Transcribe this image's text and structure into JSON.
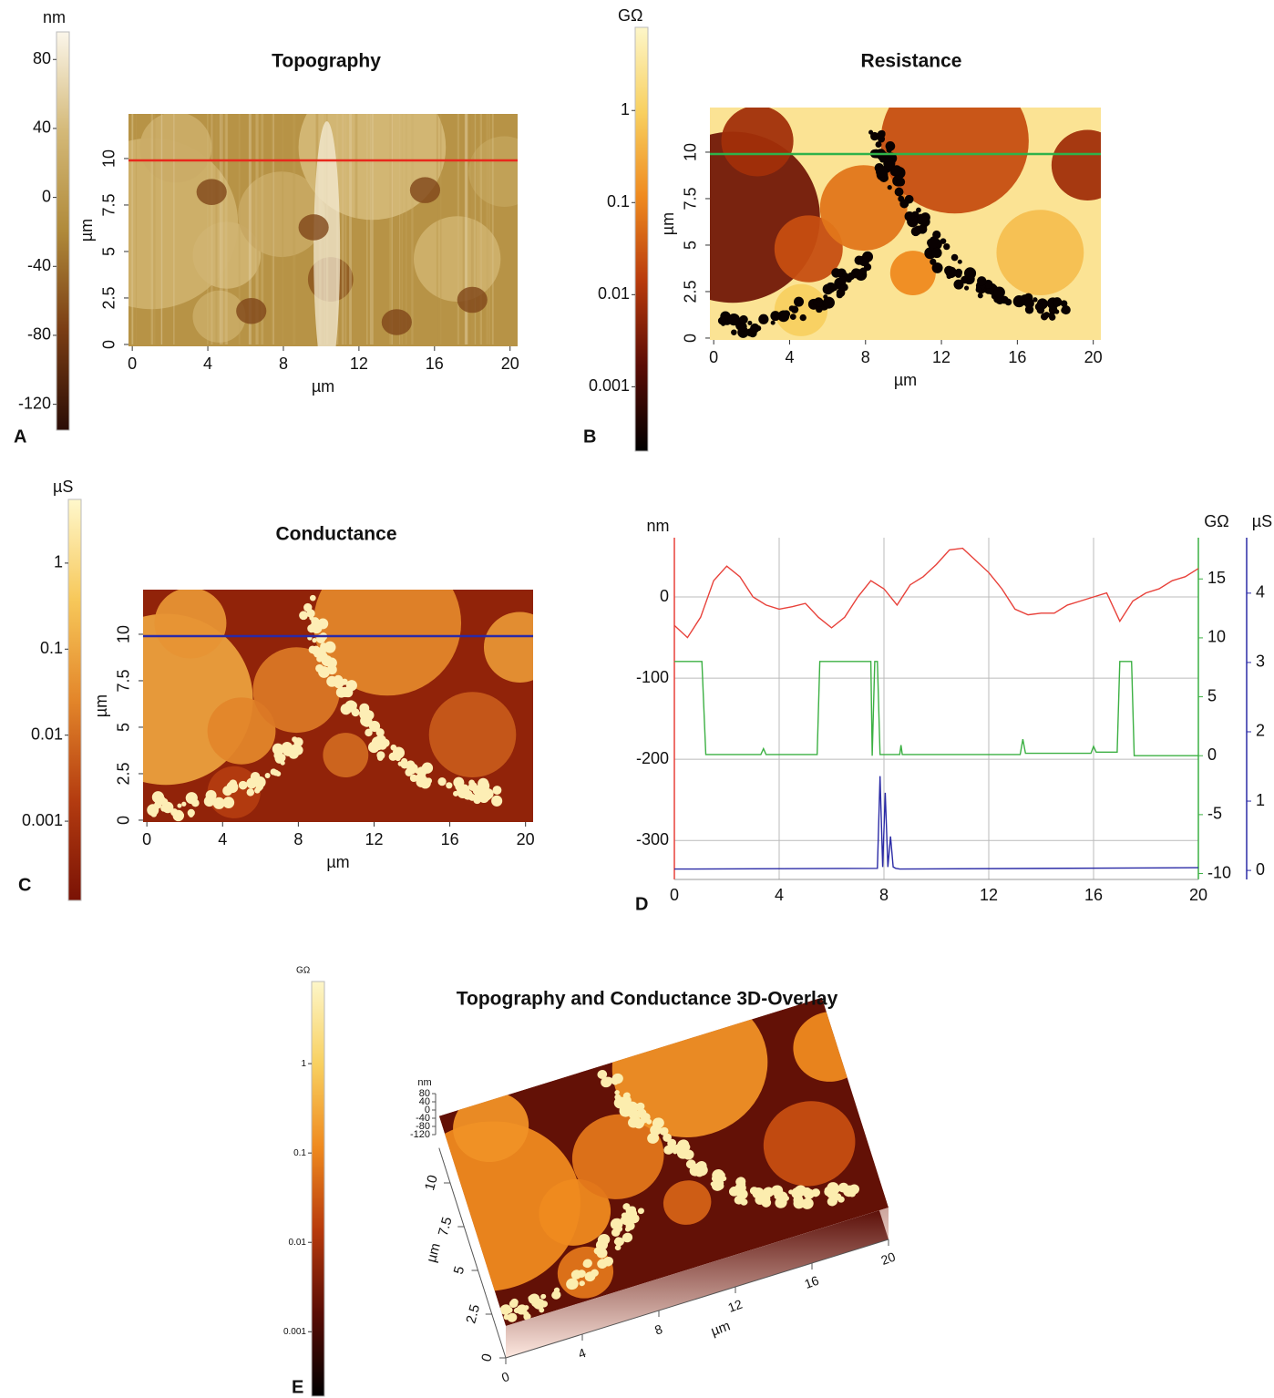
{
  "chart_data": [
    {
      "type": "heatmap",
      "panel": "A",
      "title": "Topography",
      "xlabel": "µm",
      "ylabel": "µm",
      "xlim": [
        -0.2,
        20.4
      ],
      "xticks": [
        0,
        4,
        8,
        12,
        16,
        20
      ],
      "ylim": [
        -0.1,
        12.4
      ],
      "yticks": [
        0,
        2.5,
        5,
        7.5,
        10
      ],
      "colormap": [
        "#2b0d06",
        "#7a3d14",
        "#b08a3a",
        "#d4b978",
        "#fbf6ea"
      ],
      "colorbar": {
        "unit": "nm",
        "lim": [
          -135,
          96
        ],
        "ticks": [
          80,
          40,
          0,
          -40,
          -80,
          -120
        ],
        "log": false
      },
      "profile": {
        "y": 9.9,
        "color": "#e8291c"
      }
    },
    {
      "type": "heatmap",
      "panel": "B",
      "title": "Resistance",
      "xlabel": "µm",
      "ylabel": "µm",
      "xlim": [
        -0.2,
        20.4
      ],
      "xticks": [
        0,
        4,
        8,
        12,
        16,
        20
      ],
      "ylim": [
        -0.1,
        12.4
      ],
      "yticks": [
        0,
        2.5,
        5,
        7.5,
        10
      ],
      "colormap": [
        "#000000",
        "#5a0c05",
        "#b83a0c",
        "#ef8a1f",
        "#f8d060",
        "#fdf6c8"
      ],
      "colorbar": {
        "unit": "GΩ",
        "lim": [
          0.0002,
          8
        ],
        "ticks": [
          1,
          0.1,
          0.01,
          0.001
        ],
        "log": true
      },
      "profile": {
        "y": 9.9,
        "color": "#2fb24a"
      }
    },
    {
      "type": "heatmap",
      "panel": "C",
      "title": "Conductance",
      "xlabel": "µm",
      "ylabel": "µm",
      "xlim": [
        -0.2,
        20.4
      ],
      "xticks": [
        0,
        4,
        8,
        12,
        16,
        20
      ],
      "ylim": [
        -0.1,
        12.4
      ],
      "yticks": [
        0,
        2.5,
        5,
        7.5,
        10
      ],
      "colormap": [
        "#7a1205",
        "#b43c10",
        "#e3862a",
        "#f7c85a",
        "#fff8cc"
      ],
      "colorbar": {
        "unit": "µS",
        "lim": [
          0.00012,
          5.5
        ],
        "ticks": [
          1,
          0.1,
          0.01,
          0.001
        ],
        "log": true
      },
      "profile": {
        "y": 9.9,
        "color": "#2a2aa8"
      }
    },
    {
      "type": "line",
      "panel": "D",
      "ylabel": "nm",
      "y2label": "GΩ",
      "y3label": "µS",
      "xlim": [
        0,
        20
      ],
      "xticks": [
        0,
        4,
        8,
        12,
        16,
        20
      ],
      "ylim": [
        -348,
        73
      ],
      "yticks": [
        0,
        -100,
        -200,
        -300
      ],
      "y2lim": [
        -10.5,
        18.5
      ],
      "y2ticks": [
        15,
        10,
        5,
        0,
        -5,
        -10
      ],
      "y3lim": [
        -0.13,
        4.8
      ],
      "y3ticks": [
        4,
        3,
        2,
        1,
        0
      ],
      "grid": true,
      "series": [
        {
          "axis": "y",
          "color": "#e8413a",
          "x": [
            0,
            0.5,
            1,
            1.5,
            2,
            2.5,
            3,
            3.5,
            4,
            4.5,
            5,
            5.5,
            6,
            6.5,
            7,
            7.5,
            8,
            8.5,
            9,
            9.5,
            10,
            10.5,
            11,
            11.5,
            12,
            12.5,
            13,
            13.5,
            14,
            14.5,
            15,
            15.5,
            16,
            16.5,
            17,
            17.5,
            18,
            18.5,
            19,
            19.5,
            20
          ],
          "values": [
            -35,
            -50,
            -25,
            20,
            38,
            25,
            0,
            -10,
            -15,
            -12,
            -8,
            -25,
            -38,
            -25,
            0,
            20,
            10,
            -10,
            15,
            25,
            40,
            58,
            60,
            45,
            30,
            10,
            -15,
            -22,
            -20,
            -20,
            -10,
            -5,
            0,
            5,
            -30,
            -5,
            5,
            10,
            20,
            25,
            35
          ]
        },
        {
          "axis": "y2",
          "color": "#3cb043",
          "x": [
            0,
            1.05,
            1.2,
            3.3,
            3.4,
            3.5,
            5.45,
            5.55,
            7.5,
            7.55,
            7.65,
            7.75,
            7.85,
            7.95,
            8.6,
            8.65,
            8.7,
            13.2,
            13.3,
            13.4,
            15.9,
            16.0,
            16.1,
            16.9,
            17.0,
            17.45,
            17.55,
            20
          ],
          "values": [
            8,
            8,
            0.1,
            0.1,
            0.6,
            0.1,
            0.1,
            8,
            8,
            0,
            8,
            8,
            0.1,
            0.1,
            0.1,
            0.9,
            0.1,
            0.1,
            1.4,
            0.2,
            0.2,
            0.8,
            0.3,
            0.3,
            8,
            8,
            0,
            0
          ]
        },
        {
          "axis": "y3",
          "color": "#2b2ba6",
          "x": [
            0,
            7.75,
            7.85,
            7.95,
            8.05,
            8.15,
            8.25,
            8.35,
            8.45,
            8.6,
            20
          ],
          "values": [
            0.02,
            0.03,
            1.36,
            0.05,
            1.12,
            0.05,
            0.49,
            0.05,
            0.03,
            0.02,
            0.04
          ]
        }
      ]
    },
    {
      "type": "surface3d",
      "panel": "E",
      "title": "Topography and Conductance 3D-Overlay",
      "xlabel": "µm",
      "ylabel": "µm",
      "zlabel": "nm",
      "xlim": [
        0,
        20
      ],
      "xticks": [
        0,
        4,
        8,
        12,
        16,
        20
      ],
      "ylim": [
        0,
        12
      ],
      "yticks": [
        0,
        2.5,
        5,
        7.5,
        10
      ],
      "zlim": [
        -120,
        80
      ],
      "zticks": [
        80,
        40,
        0,
        -40,
        -80,
        -120
      ],
      "colormap": [
        "#000000",
        "#5a0c05",
        "#b83a0c",
        "#ef8a1f",
        "#f8d060",
        "#fdf6c8"
      ],
      "colorbar": {
        "unit": "GΩ",
        "lim": [
          0.00019,
          8.3
        ],
        "ticks": [
          1,
          0.1,
          0.01,
          0.001
        ],
        "log": true
      }
    }
  ]
}
